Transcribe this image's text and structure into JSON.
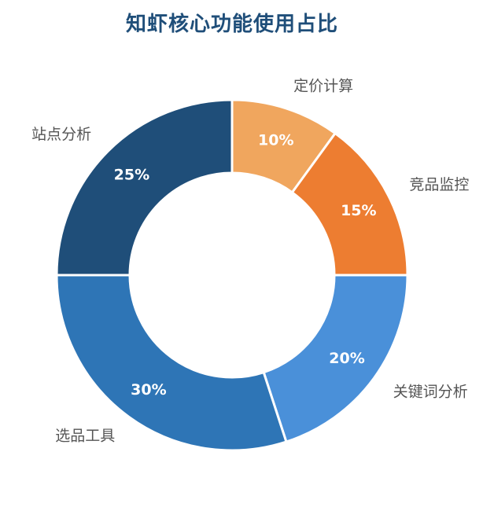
{
  "chart_data": {
    "type": "pie",
    "title": "知虾核心功能使用占比",
    "slices": [
      {
        "label": "定价计算",
        "value": 10,
        "value_label": "10%",
        "color": "#f0a65e"
      },
      {
        "label": "竞品监控",
        "value": 15,
        "value_label": "15%",
        "color": "#ed7d31"
      },
      {
        "label": "关键词分析",
        "value": 20,
        "value_label": "20%",
        "color": "#4a90d9"
      },
      {
        "label": "选品工具",
        "value": 30,
        "value_label": "30%",
        "color": "#2e75b6"
      },
      {
        "label": "站点分析",
        "value": 25,
        "value_label": "25%",
        "color": "#1f4e79"
      }
    ],
    "legend": "none"
  }
}
